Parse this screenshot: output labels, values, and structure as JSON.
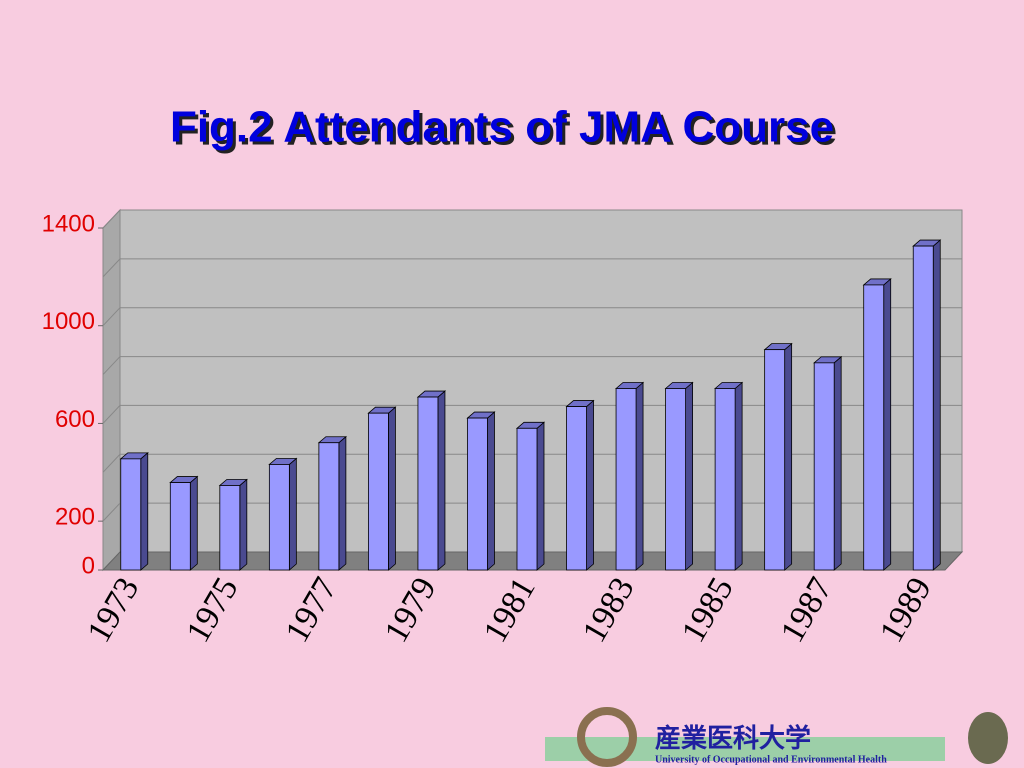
{
  "chart_data": {
    "type": "bar3d",
    "title": "Fig.2 Attendants of JMA Course",
    "categories": [
      "1973",
      null,
      "1975",
      null,
      "1977",
      null,
      "1979",
      null,
      "1981",
      null,
      "1983",
      null,
      "1985",
      null,
      "1987",
      null,
      "1989"
    ],
    "values": [
      455,
      358,
      346,
      432,
      521,
      642,
      708,
      622,
      580,
      669,
      743,
      743,
      743,
      902,
      848,
      1167,
      1326
    ],
    "color": "#9999ff",
    "ylim": [
      0,
      1400
    ],
    "yticks": [
      0,
      200,
      600,
      1000,
      1400
    ],
    "ygrid": [
      200,
      400,
      600,
      800,
      1000,
      1200,
      1400
    ],
    "grid": true
  },
  "footer": {
    "name_ja": "産業医科大学",
    "name_en": "University of Occupational and Environmental Health"
  }
}
